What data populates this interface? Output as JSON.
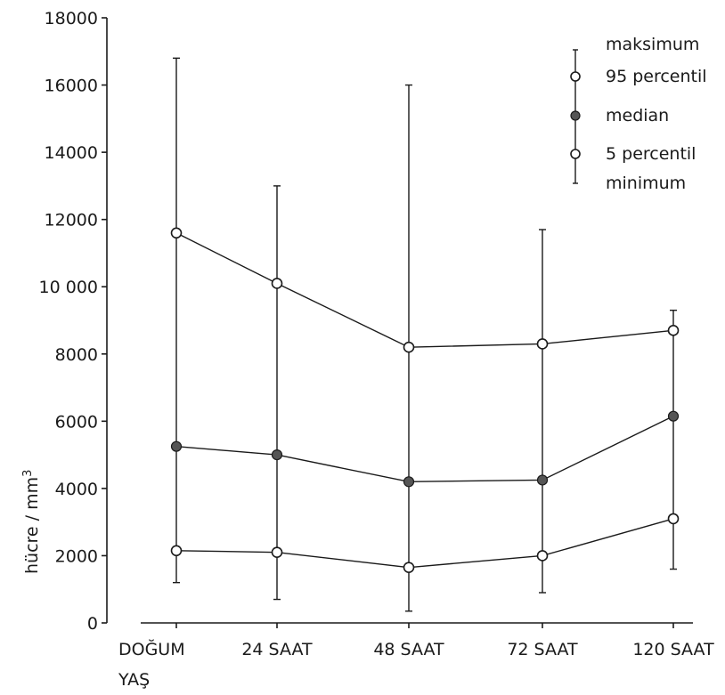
{
  "chart_data": {
    "type": "line",
    "ylabel": "hücre / mm",
    "ylabel_superscript": "3",
    "xlabel": "YAŞ",
    "ylim": [
      0,
      18000
    ],
    "yticks": [
      {
        "value": 0,
        "label": "0"
      },
      {
        "value": 2000,
        "label": "2000"
      },
      {
        "value": 4000,
        "label": "4000"
      },
      {
        "value": 6000,
        "label": "6000"
      },
      {
        "value": 8000,
        "label": "8000"
      },
      {
        "value": 10000,
        "label": "10 000"
      },
      {
        "value": 12000,
        "label": "12000"
      },
      {
        "value": 14000,
        "label": "14000"
      },
      {
        "value": 16000,
        "label": "16000"
      },
      {
        "value": 18000,
        "label": "18000"
      }
    ],
    "categories": [
      "DOĞUM",
      "24 SAAT",
      "48 SAAT",
      "72 SAAT",
      "120 SAAT"
    ],
    "maximum": [
      16800,
      13000,
      16000,
      11700,
      9300
    ],
    "minimum": [
      1200,
      700,
      350,
      900,
      1600
    ],
    "series": [
      {
        "name": "95 percentil",
        "marker": "open",
        "values": [
          11600,
          10100,
          8200,
          8300,
          8700
        ]
      },
      {
        "name": "median",
        "marker": "filled",
        "values": [
          5250,
          5000,
          4200,
          4250,
          6150
        ]
      },
      {
        "name": "5 percentil",
        "marker": "open",
        "values": [
          2150,
          2100,
          1650,
          2000,
          3100
        ]
      }
    ],
    "legend": {
      "position": "top-right",
      "items": [
        "maksimum",
        "95 percentil",
        "median",
        "5 percentil",
        "minimum"
      ]
    },
    "grid": false
  }
}
